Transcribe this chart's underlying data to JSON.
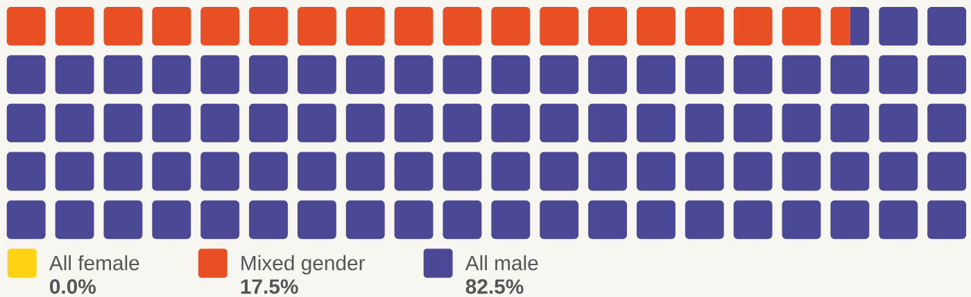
{
  "chart_data": {
    "type": "other",
    "categories": [
      "All female",
      "Mixed gender",
      "All male"
    ],
    "values": [
      0.0,
      17.5,
      82.5
    ],
    "colors": [
      "#ffd313",
      "#e84f24",
      "#4b4895"
    ],
    "value_labels": [
      "0.0%",
      "17.5%",
      "82.5%"
    ]
  }
}
